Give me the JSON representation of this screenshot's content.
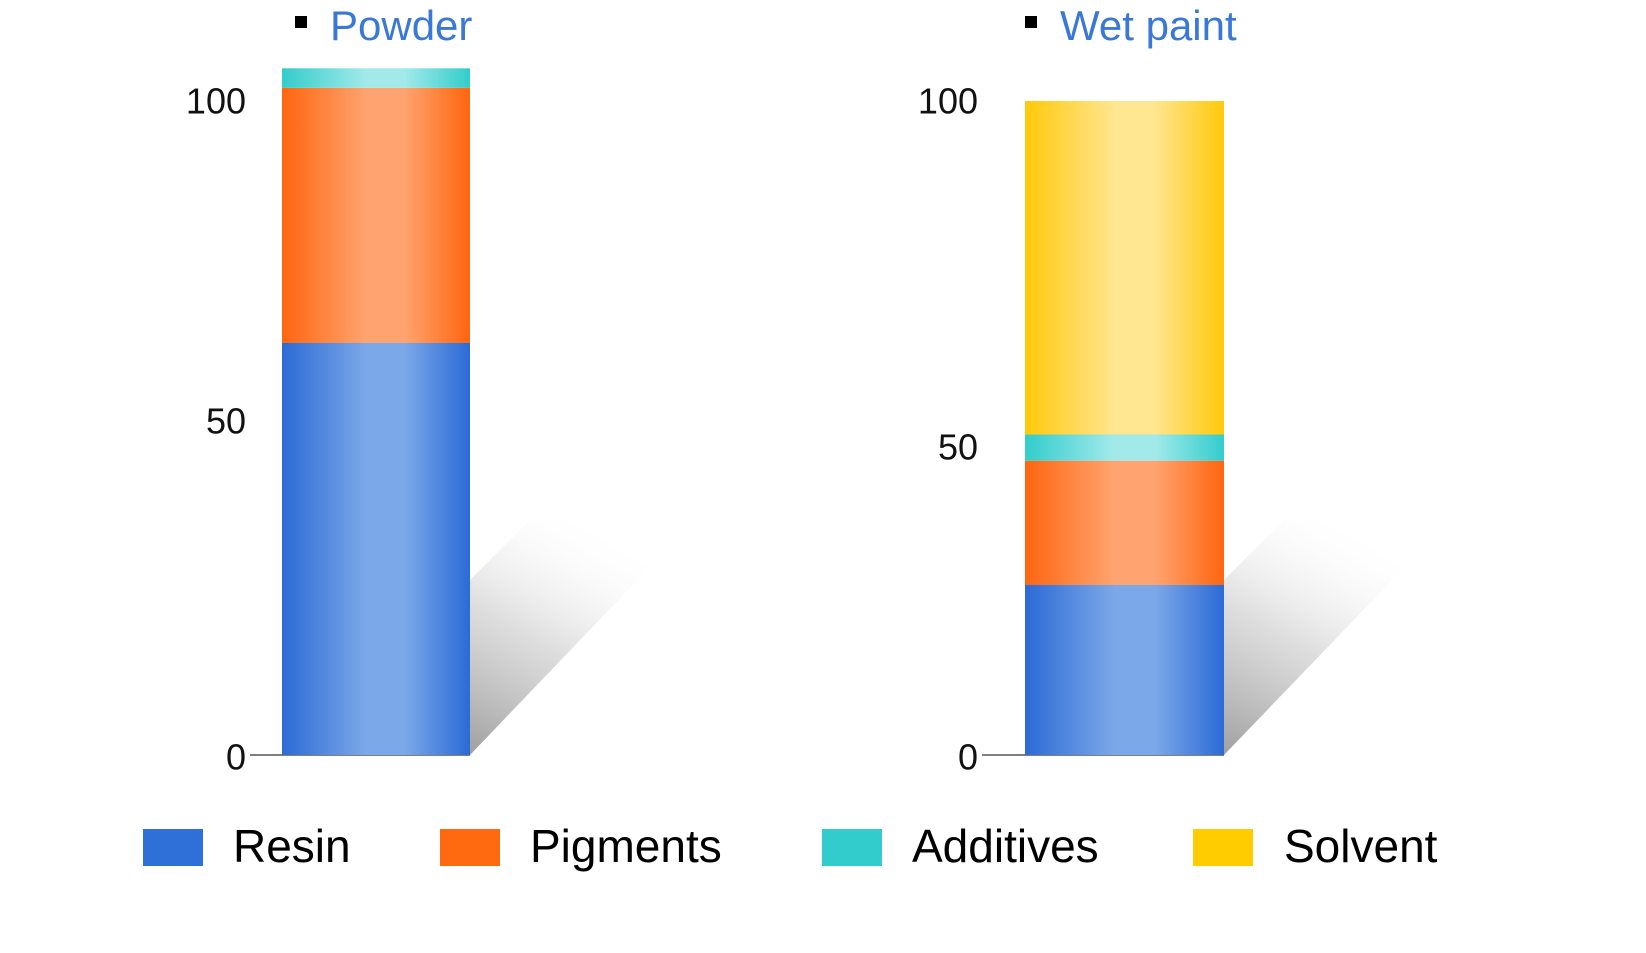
{
  "chart_data": {
    "type": "bar",
    "stacked": true,
    "ylim": [
      0,
      100
    ],
    "yticks": [
      0,
      50,
      100
    ],
    "legend_position": "bottom",
    "panels": [
      {
        "title": "Powder",
        "categories": [
          "Powder"
        ],
        "series": [
          {
            "name": "Resin",
            "values": [
              63
            ]
          },
          {
            "name": "Pigments",
            "values": [
              39
            ]
          },
          {
            "name": "Additives",
            "values": [
              3
            ]
          }
        ]
      },
      {
        "title": "Wet paint",
        "categories": [
          "Wet paint"
        ],
        "series": [
          {
            "name": "Resin",
            "values": [
              26
            ]
          },
          {
            "name": "Pigments",
            "values": [
              19
            ]
          },
          {
            "name": "Additives",
            "values": [
              4
            ]
          },
          {
            "name": "Solvent",
            "values": [
              51
            ]
          }
        ]
      }
    ]
  },
  "legend": [
    {
      "label": "Resin",
      "color": "#2e6fd8"
    },
    {
      "label": "Pigments",
      "color": "#ff6a10"
    },
    {
      "label": "Additives",
      "color": "#33cccc"
    },
    {
      "label": "Solvent",
      "color": "#ffcc00"
    }
  ],
  "colors": {
    "title": "#3a78d8",
    "axis": "#555555",
    "tick_text": "#111111",
    "bullet": "#000000"
  }
}
